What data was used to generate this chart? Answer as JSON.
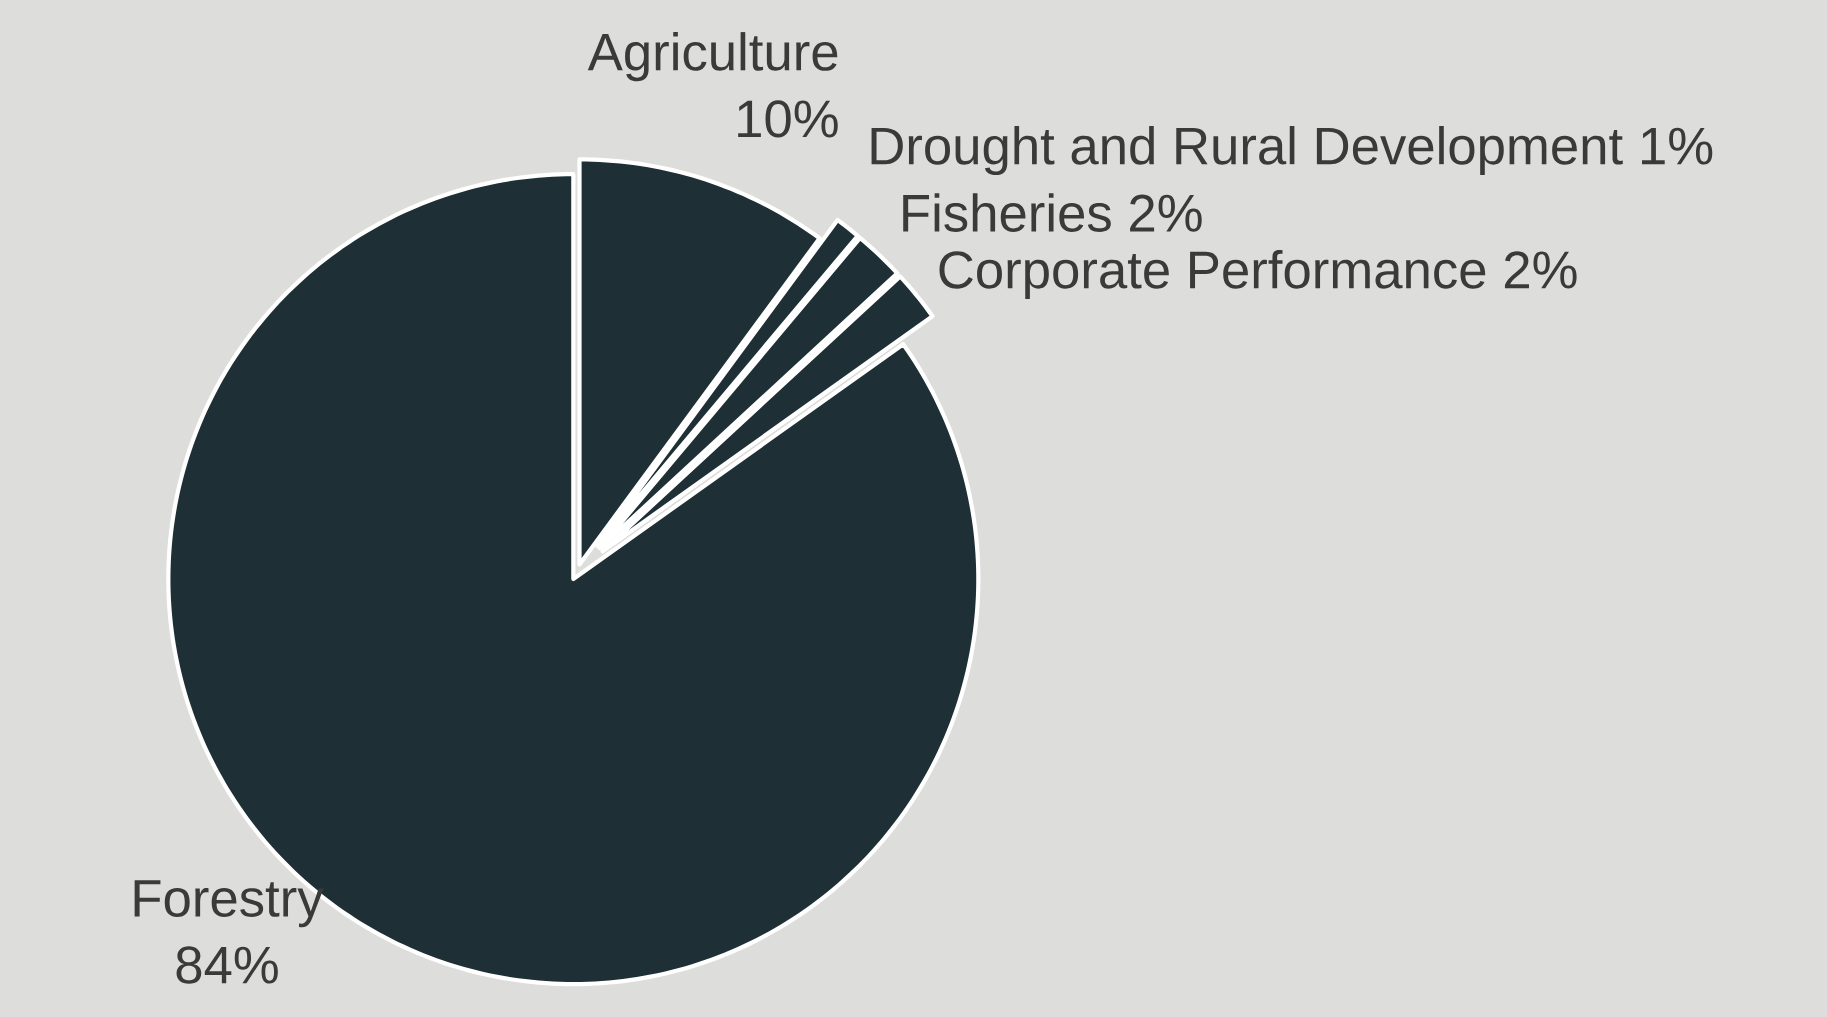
{
  "chart_data": {
    "type": "pie",
    "categories": [
      "Agriculture",
      "Drought and Rural Development",
      "Fisheries",
      "Corporate Performance",
      "Forestry"
    ],
    "values": [
      10,
      1,
      2,
      2,
      84
    ],
    "value_labels": [
      "10%",
      "1%",
      "2%",
      "2%",
      "84%"
    ],
    "colors": [
      "#1e3035",
      "#1e3035",
      "#1e3035",
      "#1e3035",
      "#1e3035"
    ]
  }
}
